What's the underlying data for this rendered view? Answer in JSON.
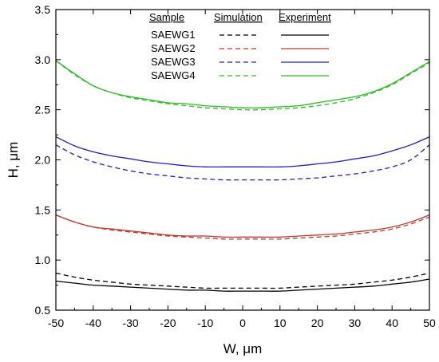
{
  "chart_data": {
    "type": "line",
    "xlabel": "W, μm",
    "ylabel": "H, μm",
    "xlim": [
      -50,
      50
    ],
    "ylim": [
      0.5,
      3.5
    ],
    "x_ticks": [
      -50,
      -40,
      -30,
      -20,
      -10,
      0,
      10,
      20,
      30,
      40,
      50
    ],
    "y_ticks": [
      "0.5",
      "1.0",
      "1.5",
      "2.0",
      "2.5",
      "3.0",
      "3.5"
    ],
    "legend": {
      "placement": "top-center",
      "headers": {
        "sample": "Sample",
        "simulation": "Simulation",
        "experiment": "Experiment"
      }
    },
    "x": [
      -50,
      -45,
      -40,
      -35,
      -30,
      -25,
      -20,
      -15,
      -10,
      -5,
      0,
      5,
      10,
      15,
      20,
      25,
      30,
      35,
      40,
      45,
      50
    ],
    "series": [
      {
        "name": "SAEWG1",
        "color": "#000000",
        "simulation": [
          0.87,
          0.83,
          0.8,
          0.78,
          0.76,
          0.75,
          0.74,
          0.73,
          0.72,
          0.72,
          0.72,
          0.72,
          0.72,
          0.73,
          0.74,
          0.75,
          0.76,
          0.78,
          0.8,
          0.83,
          0.87
        ],
        "experiment": [
          0.79,
          0.77,
          0.75,
          0.74,
          0.73,
          0.72,
          0.71,
          0.7,
          0.7,
          0.69,
          0.69,
          0.69,
          0.69,
          0.7,
          0.71,
          0.72,
          0.73,
          0.74,
          0.76,
          0.78,
          0.81
        ]
      },
      {
        "name": "SAEWG2",
        "color": "#c0392b",
        "simulation": [
          1.45,
          1.38,
          1.33,
          1.3,
          1.28,
          1.26,
          1.24,
          1.23,
          1.22,
          1.21,
          1.21,
          1.21,
          1.21,
          1.22,
          1.23,
          1.24,
          1.26,
          1.28,
          1.31,
          1.36,
          1.43
        ],
        "experiment": [
          1.45,
          1.38,
          1.33,
          1.31,
          1.29,
          1.27,
          1.25,
          1.24,
          1.24,
          1.23,
          1.23,
          1.23,
          1.23,
          1.24,
          1.25,
          1.26,
          1.28,
          1.3,
          1.33,
          1.38,
          1.45
        ]
      },
      {
        "name": "SAEWG3",
        "color": "#1f1fbf",
        "simulation": [
          2.15,
          2.05,
          1.98,
          1.93,
          1.89,
          1.86,
          1.84,
          1.82,
          1.81,
          1.8,
          1.8,
          1.8,
          1.8,
          1.81,
          1.82,
          1.84,
          1.86,
          1.89,
          1.93,
          2.0,
          2.15
        ],
        "experiment": [
          2.23,
          2.14,
          2.08,
          2.04,
          2.01,
          1.98,
          1.96,
          1.94,
          1.93,
          1.93,
          1.93,
          1.93,
          1.93,
          1.94,
          1.96,
          1.98,
          2.01,
          2.04,
          2.09,
          2.15,
          2.23
        ]
      },
      {
        "name": "SAEWG4",
        "color": "#2bbf1f",
        "simulation": [
          2.99,
          2.85,
          2.74,
          2.67,
          2.62,
          2.59,
          2.56,
          2.54,
          2.52,
          2.51,
          2.5,
          2.5,
          2.51,
          2.52,
          2.54,
          2.57,
          2.61,
          2.67,
          2.75,
          2.86,
          2.97
        ],
        "experiment": [
          2.99,
          2.86,
          2.74,
          2.67,
          2.63,
          2.6,
          2.57,
          2.56,
          2.54,
          2.53,
          2.52,
          2.52,
          2.53,
          2.54,
          2.57,
          2.6,
          2.63,
          2.68,
          2.76,
          2.87,
          2.98
        ]
      }
    ]
  }
}
